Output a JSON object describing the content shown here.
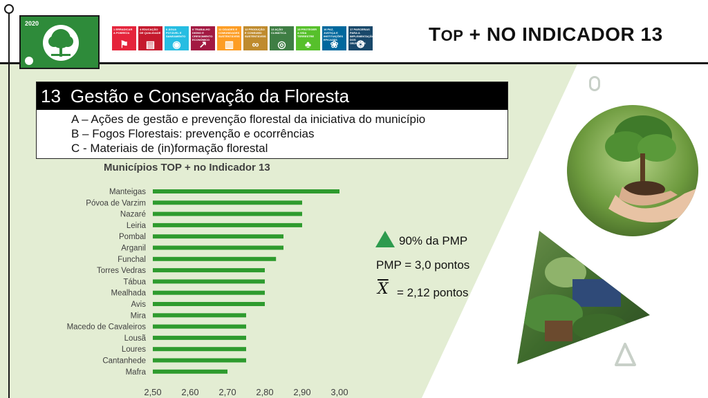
{
  "badge": {
    "year": "2020"
  },
  "sdg_icons": [
    {
      "label": "1 ERRADICAR A POBREZA",
      "color": "#e5243b",
      "icon": "people-icon"
    },
    {
      "label": "4 EDUCAÇÃO DE QUALIDADE",
      "color": "#c5192d",
      "icon": "book-icon"
    },
    {
      "label": "6 ÁGUA POTÁVEL E SANEAMENTO",
      "color": "#26bde2",
      "icon": "water-drop-icon"
    },
    {
      "label": "8 TRABALHO DIGNO E CRESCIMENTO ECONÓMICO",
      "color": "#a21942",
      "icon": "growth-chart-icon"
    },
    {
      "label": "11 CIDADES E COMUNIDADES SUSTENTÁVEIS",
      "color": "#fd9d24",
      "icon": "buildings-icon"
    },
    {
      "label": "12 PRODUÇÃO E CONSUMO SUSTENTÁVEIS",
      "color": "#bf8b2e",
      "icon": "infinity-icon"
    },
    {
      "label": "13 AÇÃO CLIMÁTICA",
      "color": "#3f7e44",
      "icon": "eye-globe-icon"
    },
    {
      "label": "15 PROTEGER A VIDA TERRESTRE",
      "color": "#56c02b",
      "icon": "tree-icon"
    },
    {
      "label": "16 PAZ, JUSTIÇA E INSTITUIÇÕES EFICAZES",
      "color": "#00689d",
      "icon": "dove-icon"
    },
    {
      "label": "17 PARCERIAS PARA A IMPLEMENTAÇÃO DOS OBJETIVOS",
      "color": "#19486a",
      "icon": "rings-icon"
    }
  ],
  "header": {
    "title_first": "T",
    "title_small": "OP",
    "title_rest": " + NO INDICADOR 13"
  },
  "indicator": {
    "number": "13",
    "title": "Gestão e Conservação da Floresta",
    "items": [
      "A – Ações de gestão e prevenção florestal da iniciativa do município",
      "B – Fogos Florestais: prevenção e ocorrências",
      "C - Materiais de (in)formação florestal"
    ]
  },
  "chart_data": {
    "type": "bar",
    "orientation": "horizontal",
    "title": "Municípios TOP + no Indicador 13",
    "categories": [
      "Manteigas",
      "Póvoa de Varzim",
      "Nazaré",
      "Leiria",
      "Pombal",
      "Arganil",
      "Funchal",
      "Torres Vedras",
      "Tábua",
      "Mealhada",
      "Avis",
      "Mira",
      "Macedo de Cavaleiros",
      "Lousã",
      "Loures",
      "Cantanhede",
      "Mafra"
    ],
    "values": [
      3.0,
      2.9,
      2.9,
      2.9,
      2.85,
      2.85,
      2.83,
      2.8,
      2.8,
      2.8,
      2.8,
      2.75,
      2.75,
      2.75,
      2.75,
      2.75,
      2.7
    ],
    "xlim": [
      2.5,
      3.0
    ],
    "xticks": [
      "2,50",
      "2,60",
      "2,70",
      "2,80",
      "2,90",
      "3,00"
    ],
    "bar_color": "#2e9b2e",
    "grid": false
  },
  "stats": {
    "legend_label": "90% da PMP",
    "legend_color": "#2e9b4e",
    "pmp": "PMP = 3,0 pontos",
    "mean_symbol": "X",
    "mean_value": "= 2,12 pontos"
  },
  "colors": {
    "panel_green": "#e6efd6",
    "accent_green": "#2e8b3a"
  }
}
